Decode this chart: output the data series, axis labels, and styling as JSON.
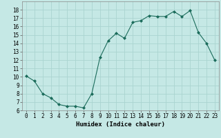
{
  "x": [
    0,
    1,
    2,
    3,
    4,
    5,
    6,
    7,
    8,
    9,
    10,
    11,
    12,
    13,
    14,
    15,
    16,
    17,
    18,
    19,
    20,
    21,
    22,
    23
  ],
  "y": [
    10.1,
    9.5,
    8.0,
    7.5,
    6.7,
    6.5,
    6.5,
    6.3,
    8.0,
    12.3,
    14.3,
    15.2,
    14.6,
    16.5,
    16.7,
    17.3,
    17.2,
    17.2,
    17.8,
    17.2,
    17.9,
    15.3,
    14.0,
    12.0
  ],
  "line_color": "#1a6b5a",
  "marker": "D",
  "marker_size": 2.0,
  "bg_color": "#c5e8e5",
  "grid_color": "#aad4d0",
  "xlabel": "Humidex (Indice chaleur)",
  "xlim": [
    -0.5,
    23.5
  ],
  "ylim": [
    6,
    19
  ],
  "yticks": [
    6,
    7,
    8,
    9,
    10,
    11,
    12,
    13,
    14,
    15,
    16,
    17,
    18
  ],
  "xticks": [
    0,
    1,
    2,
    3,
    4,
    5,
    6,
    7,
    8,
    9,
    10,
    11,
    12,
    13,
    14,
    15,
    16,
    17,
    18,
    19,
    20,
    21,
    22,
    23
  ],
  "xtick_labels": [
    "0",
    "1",
    "2",
    "3",
    "4",
    "5",
    "6",
    "7",
    "8",
    "9",
    "10",
    "11",
    "12",
    "13",
    "14",
    "15",
    "16",
    "17",
    "18",
    "19",
    "20",
    "21",
    "22",
    "23"
  ],
  "axis_fontsize": 6.5,
  "tick_fontsize": 5.5
}
